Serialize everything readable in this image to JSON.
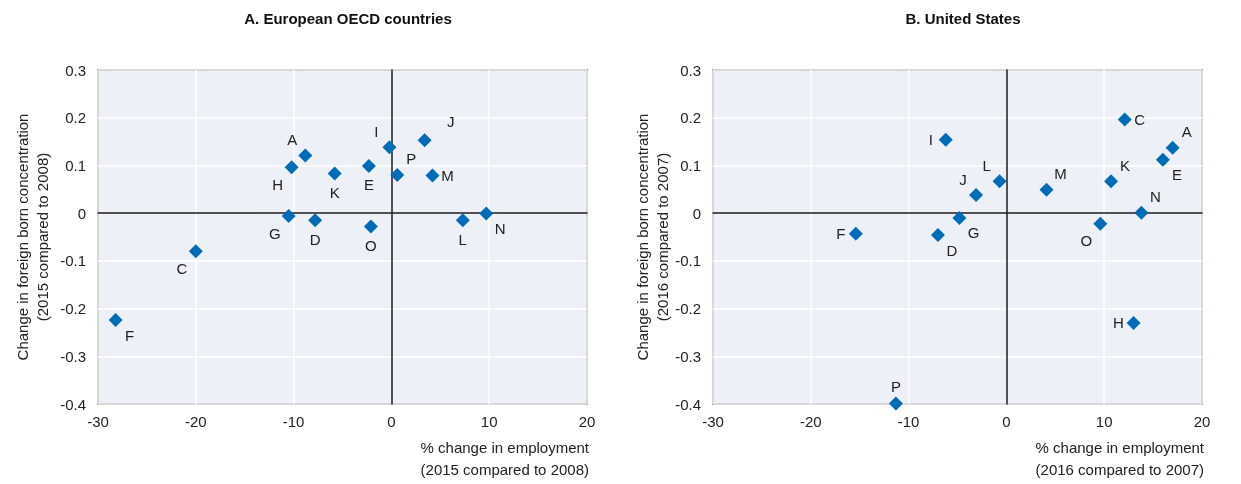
{
  "chart_data": [
    {
      "type": "scatter",
      "title": "A. European OECD countries",
      "xlabel": "% change in employment\n(2015 compared to 2008)",
      "ylabel": "Change in foreign born concentration\n(2015 compared to 2008)",
      "x": [
        -8.8,
        -10.2,
        -5.8,
        -2.3,
        -0.2,
        3.4,
        0.6,
        4.2,
        -10.5,
        -7.8,
        -2.1,
        7.3,
        9.7,
        -20.0,
        -28.2
      ],
      "values": [
        0.121,
        0.096,
        0.083,
        0.099,
        0.138,
        0.153,
        0.08,
        0.079,
        -0.006,
        -0.015,
        -0.028,
        -0.015,
        -0.001,
        -0.08,
        -0.224
      ],
      "value_labels": [
        "A",
        "H",
        "K",
        "E",
        "I",
        "J",
        "P",
        "M",
        "G",
        "D",
        "O",
        "L",
        "N",
        "C",
        "F"
      ],
      "color": "#006bb6",
      "marker": "diamond",
      "xlim": [
        -30,
        20
      ],
      "xticks": [
        -30,
        -20,
        -10,
        0,
        10,
        20
      ],
      "ylim": [
        -0.4,
        0.3
      ],
      "yticks": [
        -0.4,
        -0.3,
        -0.2,
        -0.1,
        0,
        0.1,
        0.2,
        0.3
      ],
      "grid": true
    },
    {
      "type": "scatter",
      "title": "B. United States",
      "xlabel": "% change in employment\n(2016 compared to 2007)",
      "ylabel": "Change in foreign born concentration\n(2016 compared to 2007)",
      "x": [
        12.1,
        17.0,
        16.0,
        10.7,
        4.1,
        -0.7,
        -6.2,
        -3.1,
        -4.8,
        -7.0,
        -15.4,
        13.8,
        9.6,
        13.0,
        -11.3
      ],
      "values": [
        0.196,
        0.137,
        0.112,
        0.067,
        0.049,
        0.067,
        0.154,
        0.038,
        -0.01,
        -0.046,
        -0.043,
        0.001,
        -0.022,
        -0.23,
        -0.399
      ],
      "value_labels": [
        "C",
        "A",
        "E",
        "K",
        "M",
        "L",
        "I",
        "J",
        "G",
        "D",
        "F",
        "N",
        "O",
        "H",
        "P"
      ],
      "color": "#006bb6",
      "marker": "diamond",
      "xlim": [
        -30,
        20
      ],
      "xticks": [
        -30,
        -20,
        -10,
        0,
        10,
        20
      ],
      "ylim": [
        -0.4,
        0.3
      ],
      "yticks": [
        -0.4,
        -0.3,
        -0.2,
        -0.1,
        0,
        0.1,
        0.2,
        0.3
      ],
      "grid": true
    }
  ]
}
